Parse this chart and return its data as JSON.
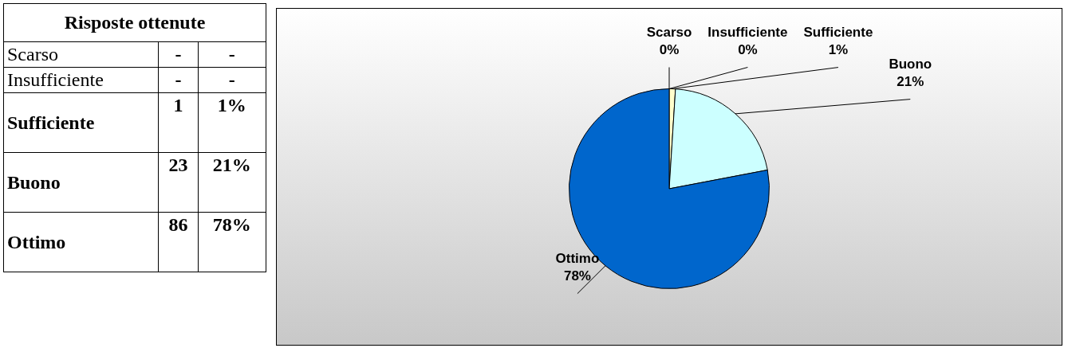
{
  "chart_data": [
    {
      "type": "other",
      "title": "Risposte ottenute",
      "categories": [
        "Scarso",
        "Insufficiente",
        "Sufficiente",
        "Buono",
        "Ottimo"
      ],
      "series": [
        {
          "values": [
            null,
            null,
            1,
            23,
            86
          ],
          "value_labels": [
            "-",
            "-",
            "1",
            "23",
            "86"
          ]
        },
        {
          "values": [
            null,
            null,
            1,
            21,
            78
          ],
          "value_labels": [
            "-",
            "-",
            "1%",
            "21%",
            "78%"
          ]
        }
      ]
    },
    {
      "type": "pie",
      "categories": [
        "Scarso",
        "Insufficiente",
        "Sufficiente",
        "Buono",
        "Ottimo"
      ],
      "values": [
        0,
        0,
        1,
        21,
        78
      ],
      "colors": [
        "#000080",
        "#333366",
        "#ffffcc",
        "#ccffff",
        "#0066cc"
      ],
      "value_labels": [
        "0%",
        "0%",
        "1%",
        "21%",
        "78%"
      ],
      "data_labels": true
    }
  ]
}
